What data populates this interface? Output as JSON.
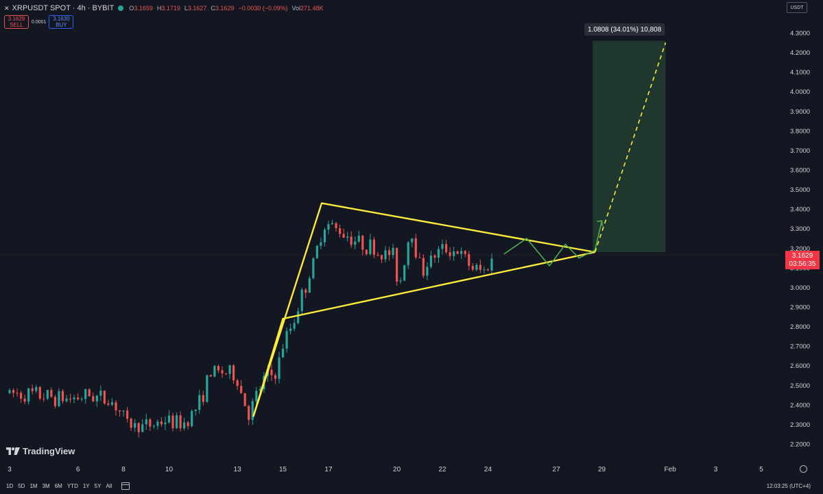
{
  "header": {
    "symbol": "XRPUSDT SPOT · 4h · BYBIT",
    "o_label": "O",
    "o_value": "3.1659",
    "h_label": "H",
    "h_value": "3.1719",
    "l_label": "L",
    "l_value": "3.1627",
    "c_label": "C",
    "c_value": "3.1629",
    "change": "−0.0030 (−0.09%)",
    "vol_label": "Vol",
    "vol_value": "271.48K"
  },
  "trade_panel": {
    "sell_price": "3.1629",
    "sell_label": "SELL",
    "spread": "0.0001",
    "buy_price": "3.1630",
    "buy_label": "BUY"
  },
  "currency": "USDT",
  "measure_label": "1.0808 (34.01%) 10,808",
  "price_tag": {
    "price": "3.1629",
    "countdown": "03:56:35"
  },
  "logo_text": "TradingView",
  "bottom_bar": {
    "ranges": [
      "1D",
      "5D",
      "1M",
      "3M",
      "6M",
      "YTD",
      "1Y",
      "5Y",
      "All"
    ],
    "clock": "12:03:25 (UTC+4)"
  },
  "colors": {
    "up": "#26a69a",
    "down": "#ef5350",
    "pattern": "#ffeb3b",
    "projection": "#4caf50",
    "target_zone": "rgba(76,175,80,0.22)",
    "price_tag": "#f23645"
  },
  "chart_data": {
    "type": "candlestick",
    "timeframe": "4h",
    "ylim": [
      2.15,
      4.37
    ],
    "y_ticks": [
      4.3,
      4.2,
      4.1,
      4.0,
      3.9,
      3.8,
      3.7,
      3.6,
      3.5,
      3.4,
      3.3,
      3.2,
      3.1,
      3.0,
      2.9,
      2.8,
      2.7,
      2.6,
      2.5,
      2.4,
      2.3,
      2.2
    ],
    "y_tick_labels": [
      "4.3000",
      "4.2000",
      "4.1000",
      "4.0000",
      "3.9000",
      "3.8000",
      "3.7000",
      "3.6000",
      "3.5000",
      "3.4000",
      "3.3000",
      "3.2000",
      "3.1000",
      "3.0000",
      "2.9000",
      "2.8000",
      "2.7000",
      "2.6000",
      "2.5000",
      "2.4000",
      "2.3000",
      "2.2000"
    ],
    "x_ticks": [
      {
        "day": 3,
        "label": "3"
      },
      {
        "day": 6,
        "label": "6"
      },
      {
        "day": 8,
        "label": "8"
      },
      {
        "day": 10,
        "label": "10"
      },
      {
        "day": 13,
        "label": "13"
      },
      {
        "day": 15,
        "label": "15"
      },
      {
        "day": 17,
        "label": "17"
      },
      {
        "day": 20,
        "label": "20"
      },
      {
        "day": 22,
        "label": "22"
      },
      {
        "day": 24,
        "label": "24"
      },
      {
        "day": 27,
        "label": "27"
      },
      {
        "day": 29,
        "label": "29"
      },
      {
        "day": 32,
        "label": "Feb"
      },
      {
        "day": 34,
        "label": "3"
      },
      {
        "day": 36,
        "label": "5"
      }
    ],
    "key_prices": [
      {
        "day": 3.0,
        "price": 2.46
      },
      {
        "day": 4.2,
        "price": 2.45
      },
      {
        "day": 5.5,
        "price": 2.43
      },
      {
        "day": 6.6,
        "price": 2.45
      },
      {
        "day": 7.6,
        "price": 2.41
      },
      {
        "day": 8.2,
        "price": 2.3
      },
      {
        "day": 9.0,
        "price": 2.29
      },
      {
        "day": 9.8,
        "price": 2.32
      },
      {
        "day": 10.6,
        "price": 2.3
      },
      {
        "day": 11.3,
        "price": 2.4
      },
      {
        "day": 11.8,
        "price": 2.56
      },
      {
        "day": 12.3,
        "price": 2.57
      },
      {
        "day": 12.9,
        "price": 2.55
      },
      {
        "day": 13.5,
        "price": 2.35
      },
      {
        "day": 14.2,
        "price": 2.54
      },
      {
        "day": 14.7,
        "price": 2.56
      },
      {
        "day": 15.0,
        "price": 2.7
      },
      {
        "day": 15.5,
        "price": 2.84
      },
      {
        "day": 15.9,
        "price": 2.98
      },
      {
        "day": 16.3,
        "price": 3.1
      },
      {
        "day": 16.8,
        "price": 3.33
      },
      {
        "day": 17.3,
        "price": 3.3
      },
      {
        "day": 17.8,
        "price": 3.27
      },
      {
        "day": 18.3,
        "price": 3.23
      },
      {
        "day": 18.8,
        "price": 3.21
      },
      {
        "day": 19.3,
        "price": 3.16
      },
      {
        "day": 19.8,
        "price": 3.18
      },
      {
        "day": 20.1,
        "price": 3.0
      },
      {
        "day": 20.6,
        "price": 3.3
      },
      {
        "day": 21.1,
        "price": 3.08
      },
      {
        "day": 21.6,
        "price": 3.16
      },
      {
        "day": 22.1,
        "price": 3.2
      },
      {
        "day": 22.7,
        "price": 3.18
      },
      {
        "day": 23.3,
        "price": 3.1
      },
      {
        "day": 23.8,
        "price": 3.08
      },
      {
        "day": 24.3,
        "price": 3.16
      }
    ],
    "triangle": {
      "apex_high": {
        "day": 16.7,
        "price": 3.43
      },
      "apex_low": {
        "day": 13.7,
        "price": 2.34
      },
      "mid_low": {
        "day": 15.0,
        "price": 2.84
      },
      "end": {
        "day": 28.7,
        "price": 3.18
      }
    },
    "projection_path": [
      {
        "day": 24.7,
        "price": 3.17
      },
      {
        "day": 25.7,
        "price": 3.25
      },
      {
        "day": 26.7,
        "price": 3.11
      },
      {
        "day": 27.4,
        "price": 3.22
      },
      {
        "day": 28.0,
        "price": 3.15
      },
      {
        "day": 28.7,
        "price": 3.19
      },
      {
        "day": 29.0,
        "price": 3.34
      }
    ],
    "projection_arrow": {
      "from": {
        "day": 28.6,
        "price": 3.19
      },
      "to": {
        "day": 29.0,
        "price": 3.34
      }
    },
    "dashed_target_line": {
      "from": {
        "day": 28.7,
        "price": 3.18
      },
      "to": {
        "day": 31.8,
        "price": 4.25
      }
    },
    "target_zone": {
      "day_from": 28.6,
      "day_to": 31.8,
      "price_from": 3.18,
      "price_to": 4.26
    },
    "last_price": 3.1629
  }
}
